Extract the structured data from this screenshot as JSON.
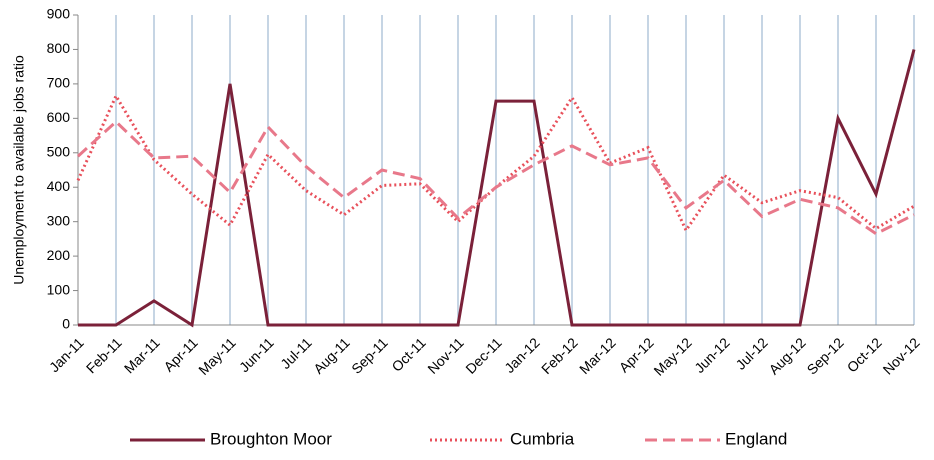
{
  "chart_data": {
    "type": "line",
    "y_label": "Unemployment to available jobs ratio",
    "categories": [
      "Jan-11",
      "Feb-11",
      "Mar-11",
      "Apr-11",
      "May-11",
      "Jun-11",
      "Jul-11",
      "Aug-11",
      "Sep-11",
      "Oct-11",
      "Nov-11",
      "Dec-11",
      "Jan-12",
      "Feb-12",
      "Mar-12",
      "Apr-12",
      "May-12",
      "Jun-12",
      "Jul-12",
      "Aug-12",
      "Sep-12",
      "Oct-12",
      "Nov-12"
    ],
    "series": [
      {
        "name": "Broughton Moor",
        "color": "#7b2139",
        "dash": "solid",
        "values": [
          0,
          0,
          70,
          0,
          700,
          0,
          0,
          0,
          0,
          0,
          0,
          650,
          650,
          0,
          0,
          0,
          0,
          0,
          0,
          0,
          600,
          380,
          800
        ]
      },
      {
        "name": "Cumbria",
        "color": "#e8505b",
        "dash": "dotted",
        "values": [
          420,
          665,
          480,
          380,
          290,
          495,
          390,
          320,
          405,
          410,
          300,
          400,
          490,
          660,
          470,
          515,
          275,
          435,
          355,
          390,
          370,
          280,
          345
        ]
      },
      {
        "name": "England",
        "color": "#e8788a",
        "dash": "dashed",
        "values": [
          490,
          590,
          485,
          490,
          385,
          575,
          460,
          370,
          450,
          425,
          310,
          400,
          465,
          520,
          465,
          485,
          340,
          420,
          315,
          365,
          340,
          265,
          320
        ]
      }
    ],
    "ylim": [
      0,
      900
    ],
    "yticks": [
      0,
      100,
      200,
      300,
      400,
      500,
      600,
      700,
      800,
      900
    ],
    "grid": "x",
    "legend": "bottom"
  }
}
